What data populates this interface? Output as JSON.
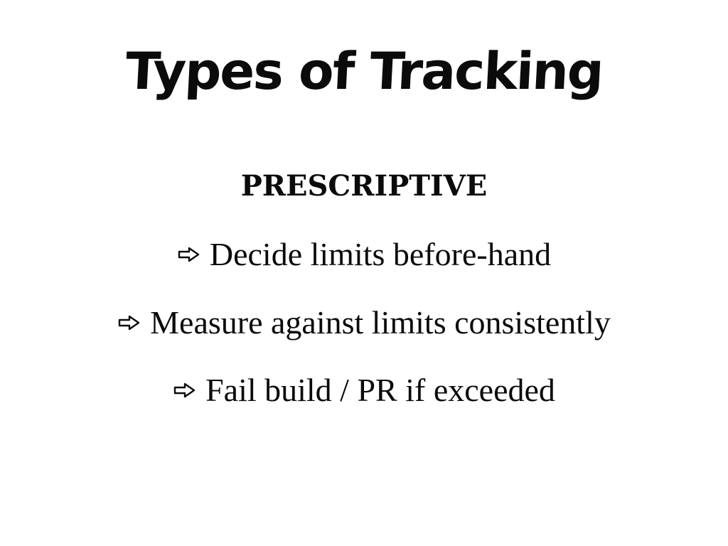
{
  "slide": {
    "title": "Types of Tracking",
    "subtitle": "PRESCRIPTIVE",
    "bullets": [
      {
        "icon": "arrow-right-icon",
        "text": "Decide limits before-hand"
      },
      {
        "icon": "arrow-right-icon",
        "text": "Measure against limits consistently"
      },
      {
        "icon": "arrow-right-icon",
        "text": "Fail build / PR if exceeded"
      }
    ]
  },
  "colors": {
    "background": "#ffffff",
    "text": "#0b0b0b"
  }
}
